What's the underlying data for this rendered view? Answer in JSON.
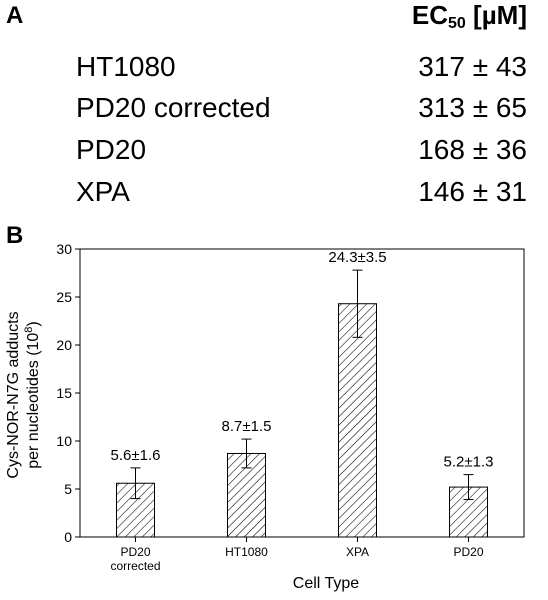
{
  "panel_a": {
    "label": "A",
    "header": {
      "text": "EC",
      "sub": "50",
      "unit": " [µM]"
    },
    "rows": [
      {
        "name": "HT1080",
        "value": "317 ± 43"
      },
      {
        "name": "PD20 corrected",
        "value": "313 ± 65"
      },
      {
        "name": "PD20",
        "value": "168 ± 36"
      },
      {
        "name": "XPA",
        "value": "146 ± 31"
      }
    ]
  },
  "panel_b": {
    "label": "B"
  },
  "chart_data": {
    "type": "bar",
    "categories": [
      "PD20 corrected",
      "HT1080",
      "XPA",
      "PD20"
    ],
    "category_lines": [
      [
        "PD20",
        "corrected"
      ],
      [
        "HT1080"
      ],
      [
        "XPA"
      ],
      [
        "PD20"
      ]
    ],
    "values": [
      5.6,
      8.7,
      24.3,
      5.2
    ],
    "errors": [
      1.6,
      1.5,
      3.5,
      1.3
    ],
    "bar_labels": [
      "5.6±1.6",
      "8.7±1.5",
      "24.3±3.5",
      "5.2±1.3"
    ],
    "xlabel": "Cell Type",
    "ylabel_line1": "Cys-NOR-N7G adducts",
    "ylabel_line2_pre": "per nucleotides (10",
    "ylabel_line2_sup": "8",
    "ylabel_line2_post": ")",
    "ylim": [
      0,
      30
    ],
    "yticks": [
      0,
      5,
      10,
      15,
      20,
      25,
      30
    ],
    "grid": false,
    "legend": "none",
    "bar_fill": "diagonal-hatch",
    "colors": {
      "bar_stroke": "#000000",
      "hatch": "#000000",
      "background": "#ffffff"
    }
  }
}
